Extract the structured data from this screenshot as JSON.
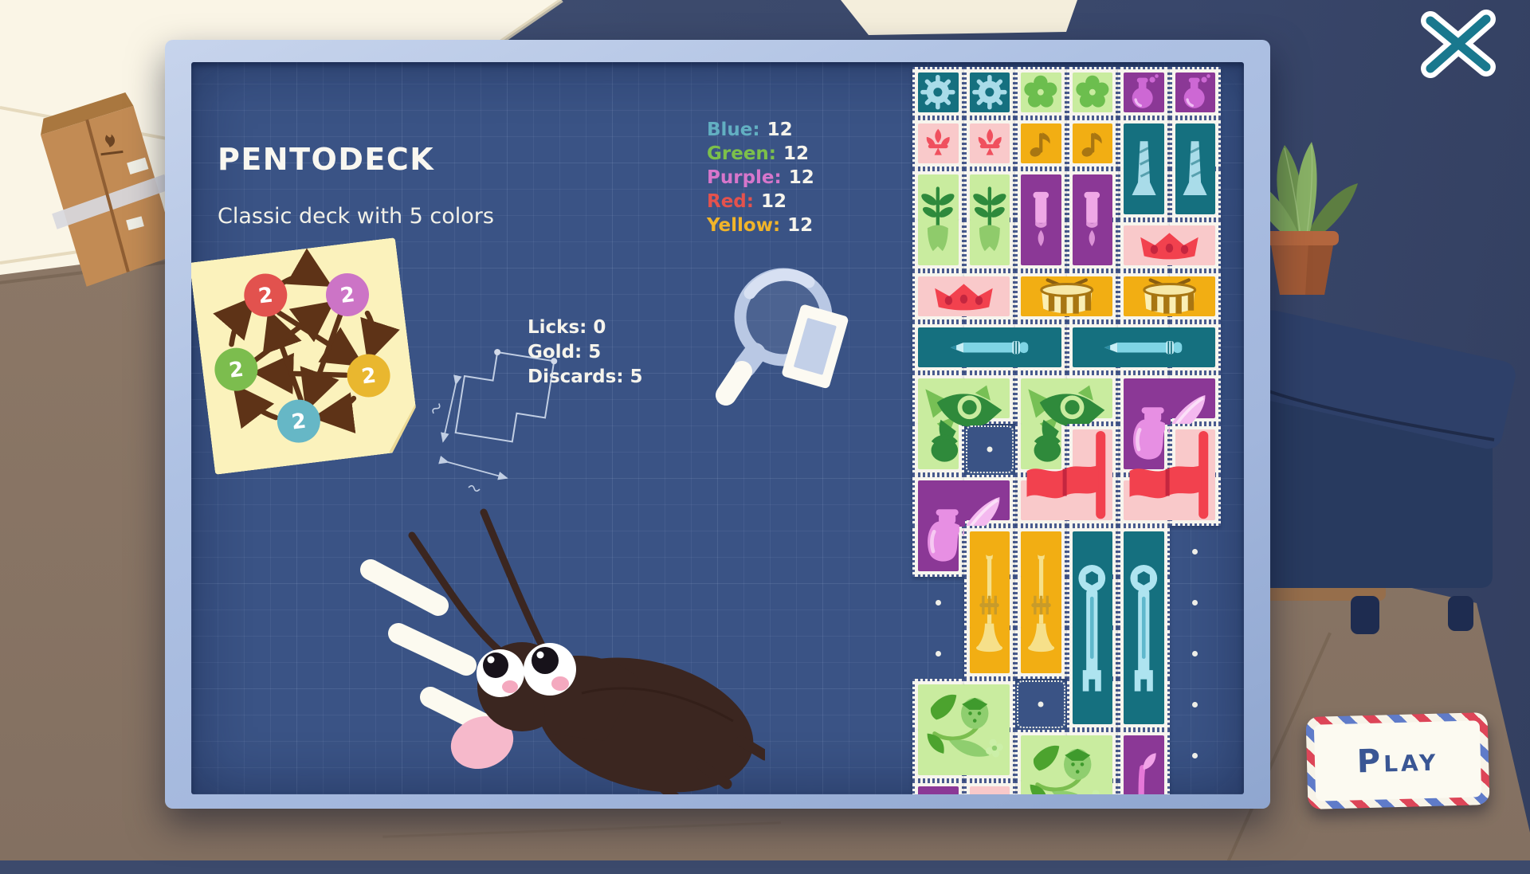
{
  "window": {
    "close_icon": "x-mark"
  },
  "dialog": {
    "title": "PENTODECK",
    "subtitle": "Classic deck with 5 colors",
    "color_counts": [
      {
        "label": "Blue",
        "value": "12",
        "color": "#62AFC2"
      },
      {
        "label": "Green",
        "value": "12",
        "color": "#7CC04A"
      },
      {
        "label": "Purple",
        "value": "12",
        "color": "#D776CB"
      },
      {
        "label": "Red",
        "value": "12",
        "color": "#E4524D"
      },
      {
        "label": "Yellow",
        "value": "12",
        "color": "#F0B42A"
      }
    ],
    "stats": [
      {
        "label": "Licks",
        "value": "0"
      },
      {
        "label": "Gold",
        "value": "5"
      },
      {
        "label": "Discards",
        "value": "5"
      }
    ],
    "note": {
      "circles": [
        {
          "name": "red",
          "color": "#E2524E",
          "value": "2"
        },
        {
          "name": "purple",
          "color": "#CC74C6",
          "value": "2"
        },
        {
          "name": "yellow",
          "color": "#E9B72F",
          "value": "2"
        },
        {
          "name": "blue",
          "color": "#66B7C6",
          "value": "2"
        },
        {
          "name": "green",
          "color": "#7CBD4E",
          "value": "2"
        }
      ]
    }
  },
  "play_button": {
    "label": "Play"
  },
  "palette": {
    "board": "#3A5385",
    "frame": "#A9BDE0",
    "wall": "#3C4A6C",
    "floor": "#8B7766",
    "stamp_teal": "#15707F",
    "stamp_green": "#C9EC9F",
    "stamp_purple": "#8B3896",
    "stamp_pink": "#F9C9CA",
    "stamp_yellow": "#F2AE13"
  },
  "stamps": [
    {
      "icon": "gear",
      "bg": "#15707F",
      "fg": "#A9DCE9",
      "cells": [
        [
          1,
          1
        ]
      ]
    },
    {
      "icon": "gear",
      "bg": "#15707F",
      "fg": "#A9DCE9",
      "cells": [
        [
          2,
          1
        ]
      ]
    },
    {
      "icon": "flower",
      "bg": "#C9EC9F",
      "fg": "#6CBE4E",
      "cells": [
        [
          3,
          1
        ]
      ]
    },
    {
      "icon": "flower",
      "bg": "#C9EC9F",
      "fg": "#6CBE4E",
      "cells": [
        [
          4,
          1
        ]
      ]
    },
    {
      "icon": "flask",
      "bg": "#8B3896",
      "fg": "#CD68D4",
      "cells": [
        [
          5,
          1
        ]
      ]
    },
    {
      "icon": "flask",
      "bg": "#8B3896",
      "fg": "#CD68D4",
      "cells": [
        [
          6,
          1
        ]
      ]
    },
    {
      "icon": "fleur",
      "bg": "#F9C9CA",
      "fg": "#F0505E",
      "cells": [
        [
          1,
          2
        ]
      ]
    },
    {
      "icon": "fleur",
      "bg": "#F9C9CA",
      "fg": "#F0505E",
      "cells": [
        [
          2,
          2
        ]
      ]
    },
    {
      "icon": "note",
      "bg": "#F2AE13",
      "fg": "#A87612",
      "cells": [
        [
          3,
          2
        ]
      ]
    },
    {
      "icon": "note",
      "bg": "#F2AE13",
      "fg": "#A87612",
      "cells": [
        [
          4,
          2
        ]
      ]
    },
    {
      "icon": "torch",
      "bg": "#15707F",
      "fg": "#A9DCE9",
      "cells": [
        [
          5,
          2
        ],
        [
          5,
          3
        ]
      ]
    },
    {
      "icon": "torch",
      "bg": "#15707F",
      "fg": "#A9DCE9",
      "cells": [
        [
          6,
          2
        ],
        [
          6,
          3
        ]
      ]
    },
    {
      "icon": "tulip",
      "bg": "#C9EC9F",
      "fg": "#2E8A3C",
      "cells": [
        [
          1,
          3
        ],
        [
          1,
          4
        ]
      ]
    },
    {
      "icon": "tulip",
      "bg": "#C9EC9F",
      "fg": "#2E8A3C",
      "cells": [
        [
          2,
          3
        ],
        [
          2,
          4
        ]
      ]
    },
    {
      "icon": "pillar",
      "bg": "#8B3896",
      "fg": "#EFA8E6",
      "cells": [
        [
          3,
          3
        ],
        [
          3,
          4
        ]
      ]
    },
    {
      "icon": "pillar",
      "bg": "#8B3896",
      "fg": "#EFA8E6",
      "cells": [
        [
          4,
          3
        ],
        [
          4,
          4
        ]
      ]
    },
    {
      "icon": "crown",
      "bg": "#F9C9CA",
      "fg": "#F2414E",
      "cells": [
        [
          5,
          4
        ],
        [
          6,
          4
        ]
      ]
    },
    {
      "icon": "crown",
      "bg": "#F9C9CA",
      "fg": "#F2414E",
      "cells": [
        [
          1,
          5
        ],
        [
          2,
          5
        ]
      ]
    },
    {
      "icon": "drum",
      "bg": "#F2AE13",
      "fg": "#FAEFB5",
      "cells": [
        [
          3,
          5
        ],
        [
          4,
          5
        ]
      ]
    },
    {
      "icon": "drum",
      "bg": "#F2AE13",
      "fg": "#FAEFB5",
      "cells": [
        [
          5,
          5
        ],
        [
          6,
          5
        ]
      ]
    },
    {
      "icon": "pencil",
      "bg": "#15707F",
      "fg": "#7FD4E4",
      "cells": [
        [
          1,
          6
        ],
        [
          2,
          6
        ],
        [
          3,
          6
        ]
      ]
    },
    {
      "icon": "pencil",
      "bg": "#15707F",
      "fg": "#7FD4E4",
      "cells": [
        [
          4,
          6
        ],
        [
          5,
          6
        ],
        [
          6,
          6
        ]
      ]
    },
    {
      "icon": "bird",
      "bg": "#C9EC9F",
      "fg": "#2F8A3B",
      "cells": [
        [
          1,
          7
        ],
        [
          2,
          7
        ],
        [
          1,
          8
        ]
      ]
    },
    {
      "icon": "bird",
      "bg": "#C9EC9F",
      "fg": "#2F8A3B",
      "cells": [
        [
          3,
          7
        ],
        [
          4,
          7
        ],
        [
          3,
          8
        ]
      ]
    },
    {
      "icon": "ink",
      "bg": "#8B3896",
      "fg": "#E78FE3",
      "cells": [
        [
          5,
          7
        ],
        [
          6,
          7
        ],
        [
          5,
          8
        ]
      ]
    },
    {
      "icon": "flag",
      "bg": "#F9C9CA",
      "fg": "#F2414E",
      "cells": [
        [
          4,
          8
        ],
        [
          3,
          9
        ],
        [
          4,
          9
        ]
      ]
    },
    {
      "icon": "flag",
      "bg": "#F9C9CA",
      "fg": "#F2414E",
      "cells": [
        [
          6,
          8
        ],
        [
          5,
          9
        ],
        [
          6,
          9
        ]
      ]
    },
    {
      "icon": "ink",
      "bg": "#8B3896",
      "fg": "#E78FE3",
      "cells": [
        [
          1,
          9
        ],
        [
          2,
          9
        ],
        [
          1,
          10
        ]
      ]
    },
    {
      "icon": "trumpet",
      "bg": "#F2AE13",
      "fg": "#F6E08A",
      "cells": [
        [
          2,
          10
        ],
        [
          2,
          11
        ],
        [
          2,
          12
        ]
      ]
    },
    {
      "icon": "trumpet",
      "bg": "#F2AE13",
      "fg": "#F6E08A",
      "cells": [
        [
          3,
          10
        ],
        [
          3,
          11
        ],
        [
          3,
          12
        ]
      ]
    },
    {
      "icon": "wrench",
      "bg": "#15707F",
      "fg": "#AEE4F0",
      "cells": [
        [
          4,
          10
        ],
        [
          4,
          11
        ],
        [
          4,
          12
        ],
        [
          4,
          13
        ]
      ]
    },
    {
      "icon": "wrench",
      "bg": "#15707F",
      "fg": "#AEE4F0",
      "cells": [
        [
          5,
          10
        ],
        [
          5,
          11
        ],
        [
          5,
          12
        ],
        [
          5,
          13
        ]
      ]
    },
    {
      "icon": "strawberry",
      "bg": "#C9EC9F",
      "fg": "#4CA32E",
      "cells": [
        [
          1,
          13
        ],
        [
          2,
          13
        ],
        [
          1,
          14
        ],
        [
          2,
          14
        ]
      ]
    },
    {
      "icon": "strawberry",
      "bg": "#C9EC9F",
      "fg": "#4CA32E",
      "cells": [
        [
          3,
          14
        ],
        [
          4,
          14
        ],
        [
          3,
          15
        ],
        [
          4,
          15
        ]
      ]
    },
    {
      "icon": "sprout",
      "bg": "#8B3896",
      "fg": "#E678D8",
      "cells": [
        [
          5,
          14
        ],
        [
          5,
          15
        ]
      ]
    },
    {
      "icon": "none",
      "bg": "#8B3896",
      "fg": "",
      "cells": [
        [
          1,
          15
        ]
      ]
    },
    {
      "icon": "none",
      "bg": "#F9C9CA",
      "fg": "",
      "cells": [
        [
          2,
          15
        ]
      ]
    }
  ],
  "empty_slots": [
    [
      2,
      8
    ],
    [
      3,
      13
    ]
  ],
  "board_dots": [
    [
      6,
      10
    ],
    [
      6,
      11
    ],
    [
      6,
      12
    ],
    [
      6,
      13
    ],
    [
      6,
      14
    ],
    [
      1,
      11
    ],
    [
      1,
      12
    ]
  ]
}
